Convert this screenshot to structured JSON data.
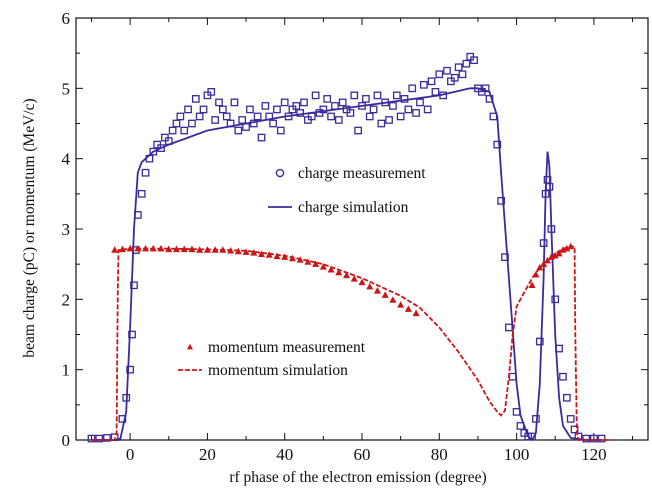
{
  "chart_data": {
    "type": "scatter",
    "xlabel": "rf phase of the electron emission (degree)",
    "ylabel": "beam charge (pC) or momentum (MeV/c)",
    "xlim": [
      -14,
      134
    ],
    "ylim": [
      0,
      6
    ],
    "xticks": [
      0,
      20,
      40,
      60,
      80,
      100,
      120
    ],
    "yticks": [
      0,
      1,
      2,
      3,
      4,
      5,
      6
    ],
    "grid": false,
    "legend_placement": "inside, two groups (center-right and lower-center)",
    "series": [
      {
        "name": "charge measurement",
        "kind": "points",
        "marker": "open-square",
        "color": "#3b2a9c",
        "x": [
          -10,
          -8,
          -6,
          -4,
          -2,
          -1,
          0,
          0.5,
          1,
          1.5,
          2,
          3,
          4,
          5,
          6,
          7,
          8,
          9,
          10,
          11,
          12,
          13,
          14,
          15,
          16,
          17,
          18,
          19,
          20,
          21,
          22,
          23,
          24,
          25,
          26,
          27,
          28,
          29,
          30,
          31,
          32,
          33,
          34,
          35,
          36,
          37,
          38,
          39,
          40,
          41,
          42,
          43,
          44,
          45,
          46,
          47,
          48,
          49,
          50,
          51,
          52,
          53,
          54,
          55,
          56,
          57,
          58,
          59,
          60,
          61,
          62,
          63,
          64,
          65,
          66,
          67,
          68,
          69,
          70,
          71,
          72,
          73,
          74,
          75,
          76,
          77,
          78,
          79,
          80,
          81,
          82,
          83,
          84,
          85,
          86,
          87,
          88,
          89,
          90,
          91,
          92,
          93,
          94,
          95,
          96,
          97,
          98,
          99,
          100,
          101,
          102,
          103,
          104,
          105,
          106,
          107,
          107.5,
          108,
          108.5,
          109,
          110,
          111,
          112,
          113,
          114,
          115,
          116,
          118,
          120,
          122
        ],
        "y": [
          0.02,
          0.02,
          0.03,
          0.04,
          0.3,
          0.6,
          1.0,
          1.5,
          2.2,
          2.7,
          3.2,
          3.5,
          3.8,
          4.0,
          4.1,
          4.2,
          4.15,
          4.3,
          4.25,
          4.4,
          4.5,
          4.6,
          4.4,
          4.7,
          4.5,
          4.85,
          4.6,
          4.7,
          4.9,
          4.95,
          4.55,
          4.8,
          4.7,
          4.6,
          4.5,
          4.8,
          4.4,
          4.55,
          4.45,
          4.7,
          4.5,
          4.6,
          4.3,
          4.75,
          4.6,
          4.5,
          4.7,
          4.4,
          4.8,
          4.6,
          4.7,
          4.75,
          4.65,
          4.8,
          4.55,
          4.6,
          4.9,
          4.65,
          4.7,
          4.85,
          4.6,
          4.75,
          4.55,
          4.8,
          4.7,
          4.65,
          4.9,
          4.4,
          4.75,
          4.85,
          4.6,
          4.7,
          4.9,
          4.5,
          4.8,
          4.55,
          4.75,
          4.9,
          4.6,
          4.85,
          4.7,
          5.0,
          4.65,
          4.8,
          5.05,
          4.7,
          5.1,
          4.95,
          5.2,
          4.9,
          5.25,
          5.1,
          5.15,
          5.3,
          5.2,
          5.35,
          5.45,
          5.4,
          5.0,
          4.95,
          5.0,
          4.85,
          4.6,
          4.2,
          3.4,
          2.6,
          1.6,
          0.9,
          0.4,
          0.2,
          0.1,
          0.05,
          0.05,
          0.3,
          1.4,
          2.8,
          3.5,
          3.7,
          3.6,
          3.0,
          2.0,
          1.3,
          0.9,
          0.6,
          0.3,
          0.15,
          0.05,
          0.02,
          0.02,
          0.02
        ]
      },
      {
        "name": "charge simulation",
        "kind": "line",
        "color": "#3b2a9c",
        "x": [
          -10,
          -4,
          -2.5,
          -1,
          0,
          1,
          2,
          3,
          4,
          6,
          10,
          20,
          40,
          60,
          80,
          88,
          90,
          93,
          95,
          96,
          98,
          100,
          101,
          103,
          104,
          105,
          106,
          107,
          107.5,
          108,
          108.5,
          109,
          110,
          111,
          112,
          114,
          118,
          122
        ],
        "y": [
          0,
          0,
          0.02,
          0.4,
          1.6,
          3.0,
          3.8,
          3.95,
          4.0,
          4.1,
          4.2,
          4.4,
          4.6,
          4.75,
          4.9,
          5.0,
          5.0,
          4.95,
          4.6,
          3.8,
          2.3,
          0.8,
          0.35,
          0.05,
          0.0,
          0.1,
          0.8,
          2.3,
          3.5,
          4.1,
          3.9,
          3.0,
          1.5,
          0.6,
          0.2,
          0.03,
          0,
          0
        ]
      },
      {
        "name": "momentum measurement",
        "kind": "points",
        "marker": "filled-triangle",
        "color": "#cc1616",
        "x": [
          -4,
          -2,
          0,
          2,
          4,
          6,
          8,
          10,
          12,
          14,
          16,
          18,
          20,
          22,
          24,
          26,
          28,
          30,
          32,
          34,
          36,
          38,
          40,
          42,
          44,
          46,
          48,
          50,
          52,
          54,
          56,
          58,
          60,
          62,
          64,
          66,
          68,
          70,
          72,
          74,
          104,
          105,
          106,
          107,
          108,
          109,
          110,
          111,
          112,
          113,
          114
        ],
        "y": [
          2.7,
          2.71,
          2.72,
          2.72,
          2.72,
          2.72,
          2.72,
          2.71,
          2.71,
          2.71,
          2.71,
          2.7,
          2.7,
          2.7,
          2.7,
          2.69,
          2.68,
          2.67,
          2.66,
          2.64,
          2.63,
          2.61,
          2.6,
          2.58,
          2.56,
          2.53,
          2.5,
          2.46,
          2.42,
          2.38,
          2.34,
          2.29,
          2.24,
          2.18,
          2.12,
          2.06,
          1.99,
          1.92,
          1.86,
          1.8,
          2.2,
          2.35,
          2.45,
          2.5,
          2.55,
          2.6,
          2.62,
          2.65,
          2.7,
          2.72,
          2.75
        ]
      },
      {
        "name": "momentum simulation",
        "kind": "line",
        "dashed": true,
        "color": "#cc1616",
        "x": [
          -10,
          -4,
          -3.5,
          -3.2,
          -3,
          0,
          10,
          20,
          30,
          40,
          50,
          60,
          70,
          75,
          80,
          85,
          90,
          93,
          95,
          96,
          97,
          98,
          99,
          100,
          102,
          104,
          106,
          108,
          110,
          112,
          114,
          115,
          115.2,
          115.6,
          116,
          120,
          124
        ],
        "y": [
          0,
          0,
          0.1,
          2.0,
          2.7,
          2.72,
          2.72,
          2.71,
          2.69,
          2.62,
          2.5,
          2.3,
          2.05,
          1.88,
          1.6,
          1.25,
          0.85,
          0.55,
          0.4,
          0.35,
          0.42,
          0.9,
          1.5,
          1.9,
          2.1,
          2.3,
          2.45,
          2.55,
          2.65,
          2.72,
          2.75,
          2.75,
          1.5,
          0.1,
          0,
          0,
          0
        ]
      }
    ]
  }
}
